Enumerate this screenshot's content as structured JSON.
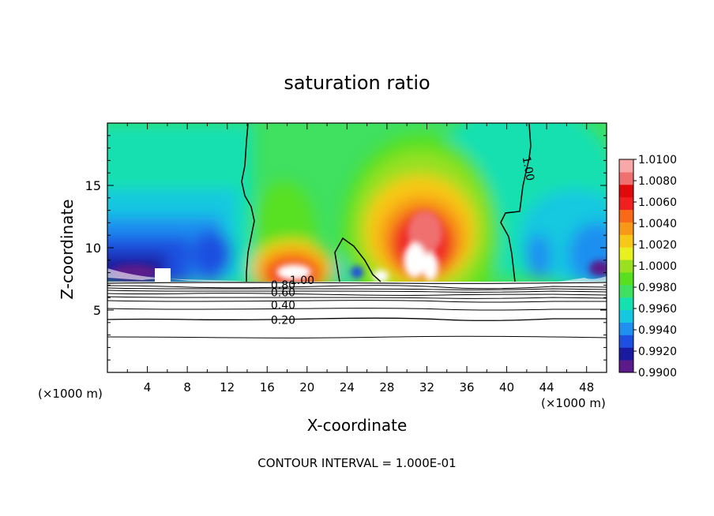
{
  "chart_data": {
    "type": "heatmap",
    "title": "saturation ratio",
    "xlabel": "X-coordinate",
    "ylabel": "Z-coordinate",
    "x_unit_label": "(×1000 m)",
    "xlim": [
      0,
      50
    ],
    "ylim": [
      0,
      20
    ],
    "x_ticks": [
      "4",
      "8",
      "12",
      "16",
      "20",
      "24",
      "28",
      "32",
      "36",
      "40",
      "44",
      "48"
    ],
    "y_ticks": [
      "5",
      "10",
      "15"
    ],
    "footer": "CONTOUR INTERVAL = 1.000E-01",
    "colorbar": {
      "min": 0.99,
      "max": 1.01,
      "labels": [
        "1.0100",
        "1.0080",
        "1.0060",
        "1.0040",
        "1.0020",
        "1.0000",
        "0.9980",
        "0.9960",
        "0.9940",
        "0.9920",
        "0.9900"
      ],
      "colors": [
        "#5a1a8a",
        "#1a1aa0",
        "#1f4fe0",
        "#1f8ff0",
        "#15c8e0",
        "#15e0b0",
        "#40e060",
        "#58e020",
        "#98e020",
        "#e8f020",
        "#f8c818",
        "#f89818",
        "#f86a18",
        "#f02020",
        "#e00a0a",
        "#f07070",
        "#f8a8a8"
      ]
    },
    "contour_labels": [
      {
        "text": "1.00",
        "x": 41.8,
        "y": 16.3,
        "rotate": 80
      },
      {
        "text": "1.00",
        "x": 19.5,
        "y": 7.1,
        "rotate": 0
      },
      {
        "text": "0.80",
        "x": 17.6,
        "y": 6.7,
        "rotate": 0
      },
      {
        "text": "0.60",
        "x": 17.6,
        "y": 6.1,
        "rotate": 0
      },
      {
        "text": "0.40",
        "x": 17.6,
        "y": 5.1,
        "rotate": 0
      },
      {
        "text": "0.20",
        "x": 17.6,
        "y": 3.9,
        "rotate": 0
      }
    ]
  }
}
